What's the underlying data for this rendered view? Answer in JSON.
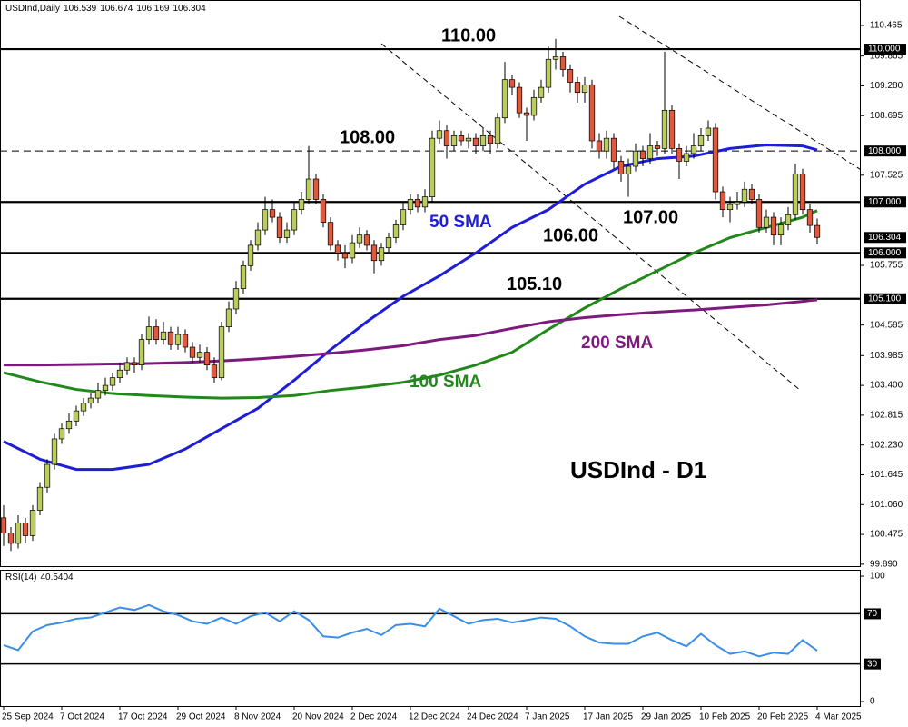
{
  "chart_data": {
    "type": "candlestick",
    "title": "USDInd - D1",
    "header": "USDInd,Daily",
    "categories": [
      "25 Sep 2024",
      null,
      null,
      null,
      null,
      null,
      null,
      null,
      "7 Oct 2024",
      null,
      null,
      null,
      null,
      null,
      null,
      null,
      "17 Oct 2024",
      null,
      null,
      null,
      null,
      null,
      null,
      null,
      "29 Oct 2024",
      null,
      null,
      null,
      null,
      null,
      null,
      null,
      "8 Nov 2024",
      null,
      null,
      null,
      null,
      null,
      null,
      null,
      "20 Nov 2024",
      null,
      null,
      null,
      null,
      null,
      null,
      null,
      "2 Dec 2024",
      null,
      null,
      null,
      null,
      null,
      null,
      null,
      "12 Dec 2024",
      null,
      null,
      null,
      null,
      null,
      null,
      null,
      "24 Dec 2024",
      null,
      null,
      null,
      null,
      null,
      null,
      null,
      "7 Jan 2025",
      null,
      null,
      null,
      null,
      null,
      null,
      null,
      "17 Jan 2025",
      null,
      null,
      null,
      null,
      null,
      null,
      null,
      "29 Jan 2025",
      null,
      null,
      null,
      null,
      null,
      null,
      null,
      "10 Feb 2025",
      null,
      null,
      null,
      null,
      null,
      null,
      null,
      "20 Feb 2025",
      null,
      null,
      null,
      null,
      null,
      null,
      null,
      "4 Mar 2025"
    ],
    "ohlc": [
      [
        100.8,
        101.05,
        100.25,
        100.5
      ],
      [
        100.5,
        100.62,
        100.15,
        100.3
      ],
      [
        100.3,
        100.85,
        100.2,
        100.7
      ],
      [
        100.7,
        100.8,
        100.3,
        100.45
      ],
      [
        100.45,
        101.05,
        100.35,
        100.95
      ],
      [
        100.95,
        101.5,
        100.85,
        101.4
      ],
      [
        101.4,
        101.95,
        101.3,
        101.85
      ],
      [
        101.85,
        102.45,
        101.75,
        102.35
      ],
      [
        102.35,
        102.65,
        102.25,
        102.55
      ],
      [
        102.55,
        102.85,
        102.45,
        102.7
      ],
      [
        102.7,
        103.0,
        102.6,
        102.9
      ],
      [
        102.9,
        103.15,
        102.8,
        103.05
      ],
      [
        103.05,
        103.25,
        102.95,
        103.15
      ],
      [
        103.15,
        103.45,
        103.05,
        103.3
      ],
      [
        103.3,
        103.55,
        103.2,
        103.4
      ],
      [
        103.4,
        103.65,
        103.3,
        103.55
      ],
      [
        103.55,
        103.85,
        103.45,
        103.7
      ],
      [
        103.7,
        103.95,
        103.6,
        103.85
      ],
      [
        103.85,
        103.95,
        103.65,
        103.8
      ],
      [
        103.8,
        104.4,
        103.7,
        104.3
      ],
      [
        104.3,
        104.75,
        104.2,
        104.55
      ],
      [
        104.55,
        104.7,
        104.2,
        104.3
      ],
      [
        104.3,
        104.65,
        104.2,
        104.45
      ],
      [
        104.45,
        104.55,
        104.1,
        104.2
      ],
      [
        104.2,
        104.55,
        104.1,
        104.4
      ],
      [
        104.4,
        104.5,
        104.05,
        104.15
      ],
      [
        104.15,
        104.25,
        103.85,
        103.95
      ],
      [
        103.95,
        104.2,
        103.85,
        104.05
      ],
      [
        104.05,
        104.15,
        103.7,
        103.8
      ],
      [
        103.8,
        103.95,
        103.45,
        103.55
      ],
      [
        103.55,
        104.65,
        103.5,
        104.55
      ],
      [
        104.55,
        105.05,
        104.45,
        104.9
      ],
      [
        104.9,
        105.45,
        104.8,
        105.3
      ],
      [
        105.3,
        105.85,
        105.2,
        105.75
      ],
      [
        105.75,
        106.25,
        105.65,
        106.15
      ],
      [
        106.15,
        106.6,
        106.05,
        106.45
      ],
      [
        106.45,
        107.1,
        106.35,
        106.85
      ],
      [
        106.85,
        107.05,
        106.6,
        106.7
      ],
      [
        106.7,
        106.8,
        106.2,
        106.3
      ],
      [
        106.3,
        106.6,
        106.2,
        106.45
      ],
      [
        106.45,
        107.0,
        106.35,
        106.85
      ],
      [
        106.85,
        107.2,
        106.75,
        107.05
      ],
      [
        107.05,
        108.1,
        106.95,
        107.45
      ],
      [
        107.45,
        107.55,
        106.95,
        107.05
      ],
      [
        107.05,
        107.15,
        106.5,
        106.6
      ],
      [
        106.6,
        106.7,
        106.05,
        106.15
      ],
      [
        106.15,
        106.25,
        105.85,
        106.0
      ],
      [
        106.0,
        106.15,
        105.7,
        105.9
      ],
      [
        105.9,
        106.35,
        105.8,
        106.2
      ],
      [
        106.2,
        106.5,
        106.1,
        106.35
      ],
      [
        106.35,
        106.45,
        106.05,
        106.15
      ],
      [
        106.15,
        106.25,
        105.6,
        105.85
      ],
      [
        105.85,
        106.2,
        105.75,
        106.1
      ],
      [
        106.1,
        106.4,
        106.0,
        106.3
      ],
      [
        106.3,
        106.65,
        106.2,
        106.55
      ],
      [
        106.55,
        107.0,
        106.45,
        106.85
      ],
      [
        106.85,
        107.15,
        106.75,
        107.05
      ],
      [
        107.05,
        107.15,
        106.8,
        106.9
      ],
      [
        106.9,
        107.25,
        106.8,
        107.1
      ],
      [
        107.1,
        108.4,
        107.0,
        108.25
      ],
      [
        108.25,
        108.6,
        108.15,
        108.4
      ],
      [
        108.4,
        108.5,
        107.85,
        108.1
      ],
      [
        108.1,
        108.4,
        108.0,
        108.3
      ],
      [
        108.3,
        108.4,
        108.1,
        108.2
      ],
      [
        108.2,
        108.35,
        108.05,
        108.25
      ],
      [
        108.25,
        108.35,
        107.95,
        108.1
      ],
      [
        108.1,
        108.45,
        108.0,
        108.3
      ],
      [
        108.3,
        108.4,
        107.95,
        108.15
      ],
      [
        108.15,
        108.75,
        108.05,
        108.65
      ],
      [
        108.65,
        109.75,
        108.55,
        109.4
      ],
      [
        109.4,
        109.5,
        109.1,
        109.25
      ],
      [
        109.25,
        109.35,
        108.65,
        108.75
      ],
      [
        108.75,
        108.85,
        108.2,
        108.7
      ],
      [
        108.7,
        109.2,
        108.6,
        109.05
      ],
      [
        109.05,
        109.4,
        108.95,
        109.25
      ],
      [
        109.25,
        110.05,
        109.15,
        109.8
      ],
      [
        109.8,
        110.2,
        109.6,
        109.85
      ],
      [
        109.85,
        109.95,
        109.45,
        109.6
      ],
      [
        109.6,
        109.7,
        109.15,
        109.35
      ],
      [
        109.35,
        109.45,
        108.95,
        109.15
      ],
      [
        109.15,
        109.45,
        108.95,
        109.3
      ],
      [
        109.3,
        109.4,
        108.05,
        108.2
      ],
      [
        108.2,
        108.35,
        107.85,
        108.0
      ],
      [
        108.0,
        108.4,
        107.85,
        108.25
      ],
      [
        108.25,
        108.35,
        107.65,
        107.8
      ],
      [
        107.8,
        107.9,
        107.4,
        107.55
      ],
      [
        107.55,
        107.85,
        107.1,
        107.7
      ],
      [
        107.7,
        108.15,
        107.6,
        108.0
      ],
      [
        108.0,
        108.1,
        107.7,
        107.85
      ],
      [
        107.85,
        108.35,
        107.75,
        108.1
      ],
      [
        108.1,
        108.2,
        107.9,
        108.05
      ],
      [
        108.05,
        109.95,
        107.95,
        108.8
      ],
      [
        108.8,
        108.9,
        107.95,
        108.05
      ],
      [
        108.05,
        108.15,
        107.45,
        107.8
      ],
      [
        107.8,
        108.1,
        107.7,
        107.95
      ],
      [
        107.95,
        108.35,
        107.85,
        108.1
      ],
      [
        108.1,
        108.45,
        108.0,
        108.3
      ],
      [
        108.3,
        108.6,
        108.2,
        108.45
      ],
      [
        108.45,
        108.55,
        107.05,
        107.2
      ],
      [
        107.2,
        107.3,
        106.7,
        106.85
      ],
      [
        106.85,
        107.1,
        106.6,
        106.95
      ],
      [
        106.95,
        107.2,
        106.85,
        107.0
      ],
      [
        107.0,
        107.4,
        106.9,
        107.25
      ],
      [
        107.25,
        107.35,
        106.95,
        107.05
      ],
      [
        107.05,
        107.15,
        106.4,
        106.5
      ],
      [
        106.5,
        106.85,
        106.4,
        106.7
      ],
      [
        106.7,
        106.8,
        106.15,
        106.35
      ],
      [
        106.35,
        106.7,
        106.15,
        106.55
      ],
      [
        106.55,
        106.9,
        106.45,
        106.75
      ],
      [
        106.75,
        107.75,
        106.65,
        107.55
      ],
      [
        107.55,
        107.65,
        106.75,
        106.85
      ],
      [
        106.85,
        106.95,
        106.4,
        106.539
      ],
      [
        106.539,
        106.674,
        106.169,
        106.304
      ]
    ],
    "up_color": "#b9cc5e",
    "down_color": "#e2583c",
    "ylim": [
      99.87,
      110.964
    ],
    "yticks": [
      110.465,
      109.865,
      {
        "value": 109.28,
        "label": "109.280"
      },
      108.695,
      107.525,
      105.755,
      104.585,
      103.985,
      {
        "value": 103.4,
        "label": "103.400"
      },
      102.815,
      {
        "value": 102.23,
        "label": "102.230"
      },
      101.645,
      {
        "value": 101.06,
        "label": "101.060"
      },
      100.475,
      {
        "value": 99.89,
        "label": "99.890"
      }
    ],
    "levels": [
      {
        "value": 110,
        "label": "110.000",
        "annotation": "110.00",
        "dashed": false
      },
      {
        "value": 108,
        "label": "108.000",
        "annotation": "108.00",
        "dashed": true
      },
      {
        "value": 107,
        "label": "107.000",
        "annotation": "107.00",
        "dashed": false
      },
      {
        "value": 106,
        "label": "106.000",
        "annotation": "106.00",
        "dashed": false
      },
      {
        "value": 105.1,
        "label": "105.100",
        "annotation": "105.10",
        "dashed": false
      }
    ],
    "lines": [
      {
        "name": "50 SMA",
        "color": "#1e1ed8",
        "x": [
          0,
          5,
          10,
          15,
          20,
          25,
          30,
          35,
          40,
          45,
          50,
          55,
          60,
          65,
          70,
          75,
          80,
          85,
          90,
          95,
          100,
          105,
          110,
          112
        ],
        "values": [
          102.3,
          101.95,
          101.75,
          101.75,
          101.85,
          102.15,
          102.55,
          102.95,
          103.5,
          104.1,
          104.65,
          105.15,
          105.55,
          106.0,
          106.5,
          106.85,
          107.35,
          107.7,
          107.85,
          107.9,
          108.05,
          108.12,
          108.1,
          108.02
        ]
      },
      {
        "name": "100 SMA",
        "color": "#23881c",
        "x": [
          0,
          5,
          10,
          15,
          20,
          25,
          30,
          35,
          40,
          45,
          50,
          55,
          60,
          65,
          70,
          75,
          80,
          85,
          90,
          95,
          100,
          105,
          110,
          112
        ],
        "values": [
          103.65,
          103.47,
          103.32,
          103.24,
          103.2,
          103.17,
          103.15,
          103.16,
          103.2,
          103.3,
          103.37,
          103.46,
          103.6,
          103.8,
          104.05,
          104.5,
          104.92,
          105.3,
          105.65,
          106.0,
          106.3,
          106.5,
          106.7,
          106.83
        ]
      },
      {
        "name": "200 SMA",
        "color": "#7d1a7d",
        "x": [
          0,
          5,
          10,
          15,
          20,
          25,
          30,
          35,
          40,
          45,
          50,
          55,
          60,
          65,
          70,
          75,
          80,
          85,
          90,
          95,
          100,
          105,
          110,
          112
        ],
        "values": [
          103.8,
          103.8,
          103.81,
          103.82,
          103.83,
          103.85,
          103.88,
          103.92,
          103.97,
          104.03,
          104.1,
          104.18,
          104.3,
          104.38,
          104.52,
          104.65,
          104.73,
          104.79,
          104.84,
          104.88,
          104.93,
          104.98,
          105.05,
          105.08
        ]
      }
    ],
    "rsi": {
      "title": "RSI(14)",
      "color": "#3a8ee6",
      "x": [
        0,
        2,
        4,
        6,
        8,
        10,
        12,
        14,
        16,
        18,
        20,
        22,
        24,
        26,
        28,
        30,
        32,
        34,
        36,
        38,
        40,
        42,
        44,
        46,
        48,
        50,
        52,
        54,
        56,
        58,
        60,
        62,
        64,
        66,
        68,
        70,
        72,
        74,
        76,
        78,
        80,
        82,
        84,
        86,
        88,
        90,
        92,
        94,
        96,
        98,
        100,
        102,
        104,
        106,
        108,
        110,
        112
      ],
      "values": [
        45,
        41,
        56,
        61,
        63,
        66,
        67,
        71,
        75,
        73,
        77,
        72,
        69,
        64,
        62,
        67,
        62,
        68,
        71,
        64,
        72,
        65,
        52,
        51,
        55,
        58,
        53,
        61,
        62,
        60,
        74,
        68,
        62,
        65,
        66,
        63,
        65,
        67,
        66,
        60,
        52,
        47,
        46,
        46,
        52,
        55,
        49,
        44,
        54,
        45,
        38,
        40,
        36,
        39,
        38,
        49,
        40.5404
      ],
      "ylim": [
        -3.6,
        105.1
      ],
      "yticks": [
        100,
        0
      ],
      "levels": [
        70,
        30
      ]
    }
  }
}
